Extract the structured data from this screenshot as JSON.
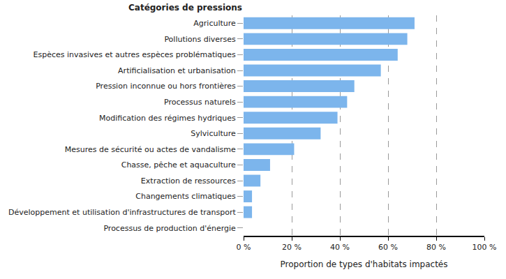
{
  "chart_data": {
    "type": "bar",
    "orientation": "horizontal",
    "title": "Catégories de pressions",
    "x_label": "Proportion de types d'habitats impactés",
    "categories": [
      "Agriculture",
      "Pollutions diverses",
      "Espèces invasives et autres espèces problématiques",
      "Artificialisation et urbanisation",
      "Pression inconnue ou hors frontières",
      "Processus naturels",
      "Modification des régimes hydriques",
      "Sylviculture",
      "Mesures de sécurité ou actes de vandalisme",
      "Chasse, pêche et aquaculture",
      "Extraction de ressources",
      "Changements climatiques",
      "Développement et utilisation d'infrastructures de transport",
      "Processus de production d'énergie"
    ],
    "values": [
      71,
      68,
      64,
      57,
      46,
      43,
      39,
      32,
      21,
      11,
      7,
      3.5,
      3.5,
      0
    ],
    "color": "#7cb5ec",
    "xlim": [
      0,
      100
    ],
    "xticks": [
      {
        "value": 0,
        "label": "0 %"
      },
      {
        "value": 20,
        "label": "20 %"
      },
      {
        "value": 40,
        "label": "40 %"
      },
      {
        "value": 60,
        "label": "60 %"
      },
      {
        "value": 80,
        "label": "80 %"
      },
      {
        "value": 100,
        "label": "100 %"
      }
    ],
    "grid": true,
    "data_labels": false
  }
}
